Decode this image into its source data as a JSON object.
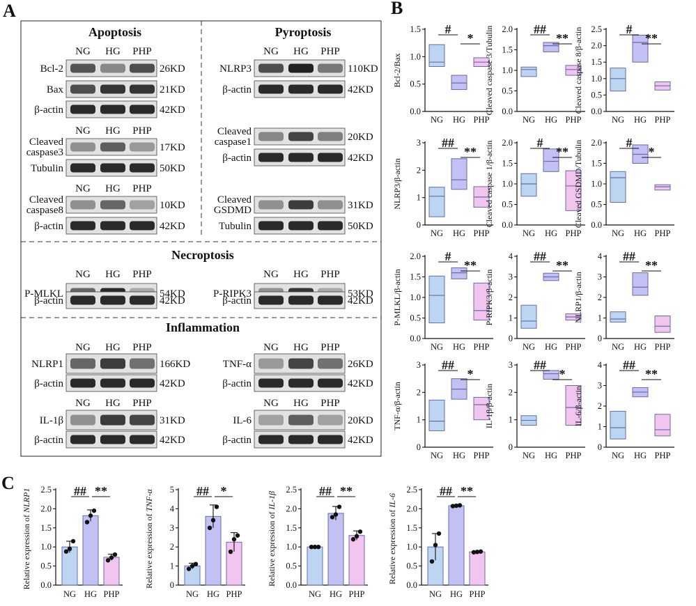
{
  "panels": [
    "A",
    "B",
    "C"
  ],
  "colors": {
    "NG": "#bcd6f2",
    "HG": "#c3c1f4",
    "PHP": "#f2c5ef",
    "edge": "#6a6aa8",
    "axis": "#111111",
    "blot_bg": "#e2e2e2",
    "band": "#1a1a1a"
  },
  "groups": [
    "NG",
    "HG",
    "PHP"
  ],
  "western": {
    "sections": [
      "Apoptosis",
      "Pyroptosis",
      "Necroptosis",
      "Inflammation"
    ],
    "apoptosis": [
      {
        "label": "Bcl-2",
        "kd": "26KD",
        "bands": [
          0.65,
          0.35,
          0.7
        ]
      },
      {
        "label": "Bax",
        "kd": "21KD",
        "bands": [
          0.7,
          0.85,
          0.85
        ]
      },
      {
        "label": "β-actin",
        "kd": "42KD",
        "bands": [
          0.9,
          0.9,
          0.9
        ]
      },
      {
        "label": "Cleaved caspase3",
        "kd": "17KD",
        "bands": [
          0.3,
          0.6,
          0.25
        ]
      },
      {
        "label": "Tubulin",
        "kd": "50KD",
        "bands": [
          0.9,
          0.9,
          0.9
        ]
      },
      {
        "label": "Cleaved caspase8",
        "kd": "10KD",
        "bands": [
          0.3,
          0.55,
          0.2
        ]
      },
      {
        "label": "β-actin",
        "kd": "42KD",
        "bands": [
          0.9,
          0.9,
          0.9
        ]
      }
    ],
    "pyroptosis": [
      {
        "label": "NLRP3",
        "kd": "110KD",
        "bands": [
          0.7,
          0.95,
          0.45
        ]
      },
      {
        "label": "β-actin",
        "kd": "42KD",
        "bands": [
          0.9,
          0.9,
          0.9
        ]
      },
      {
        "label": "Cleaved caspase1",
        "kd": "20KD",
        "bands": [
          0.35,
          0.75,
          0.4
        ]
      },
      {
        "label": "β-actin",
        "kd": "42KD",
        "bands": [
          0.9,
          0.9,
          0.9
        ]
      },
      {
        "label": "Cleaved GSDMD",
        "kd": "31KD",
        "bands": [
          0.3,
          0.8,
          0.3
        ]
      },
      {
        "label": "Tubulin",
        "kd": "50KD",
        "bands": [
          0.9,
          0.9,
          0.9
        ]
      }
    ],
    "necroptosis": [
      {
        "label": "P-MLKL",
        "kd": "54KD",
        "bands": [
          0.55,
          0.9,
          0.15
        ]
      },
      {
        "label": "β-actin",
        "kd": "42KD",
        "bands": [
          0.9,
          0.9,
          0.9
        ]
      },
      {
        "label": "P-RIPK3",
        "kd": "53KD",
        "bands": [
          0.3,
          0.85,
          0.15
        ]
      },
      {
        "label": "β-actin",
        "kd": "42KD",
        "bands": [
          0.9,
          0.9,
          0.9
        ]
      }
    ],
    "inflammation": [
      {
        "label": "NLRP1",
        "kd": "166KD",
        "bands": [
          0.55,
          0.8,
          0.5
        ]
      },
      {
        "label": "β-actin",
        "kd": "42KD",
        "bands": [
          0.9,
          0.9,
          0.9
        ]
      },
      {
        "label": "TNF-α",
        "kd": "26KD",
        "bands": [
          0.25,
          0.75,
          0.5
        ]
      },
      {
        "label": "β-actin",
        "kd": "42KD",
        "bands": [
          0.9,
          0.9,
          0.9
        ]
      },
      {
        "label": "IL-1β",
        "kd": "31KD",
        "bands": [
          0.3,
          0.8,
          0.75
        ]
      },
      {
        "label": "β-actin",
        "kd": "42KD",
        "bands": [
          0.9,
          0.9,
          0.9
        ]
      },
      {
        "label": "IL-6",
        "kd": "20KD",
        "bands": [
          0.2,
          0.6,
          0.2
        ]
      },
      {
        "label": "β-actin",
        "kd": "42KD",
        "bands": [
          0.9,
          0.9,
          0.9
        ]
      }
    ]
  },
  "chart_data": [
    {
      "panel": "B",
      "type": "box",
      "ylabel": "Bcl-2/Bax",
      "categories": [
        "NG",
        "HG",
        "PHP"
      ],
      "ylim": [
        0,
        1.5
      ],
      "ticks": [
        "0.0",
        "0.5",
        "1.0",
        "1.5"
      ],
      "boxes": [
        [
          0.82,
          0.9,
          1.22
        ],
        [
          0.4,
          0.52,
          0.66
        ],
        [
          0.82,
          0.9,
          0.98
        ]
      ],
      "sig": [
        {
          "from": 0,
          "to": 1,
          "mark": "#"
        },
        {
          "from": 1,
          "to": 2,
          "mark": "*"
        }
      ]
    },
    {
      "panel": "B",
      "type": "box",
      "ylabel": "Cleaved caspase 3/Tubulin",
      "categories": [
        "NG",
        "HG",
        "PHP"
      ],
      "ylim": [
        0,
        2.0
      ],
      "ticks": [
        "0.0",
        "0.5",
        "1.0",
        "1.5",
        "2.0"
      ],
      "boxes": [
        [
          0.85,
          1.02,
          1.08
        ],
        [
          1.45,
          1.6,
          1.68
        ],
        [
          0.88,
          1.02,
          1.12
        ]
      ],
      "sig": [
        {
          "from": 0,
          "to": 1,
          "mark": "##"
        },
        {
          "from": 1,
          "to": 2,
          "mark": "**"
        }
      ]
    },
    {
      "panel": "B",
      "type": "box",
      "ylabel": "Cleaved caspase 8/β-actin",
      "categories": [
        "NG",
        "HG",
        "PHP"
      ],
      "ylim": [
        0,
        2.5
      ],
      "ticks": [
        "0.0",
        "0.5",
        "1.0",
        "1.5",
        "2.0",
        "2.5"
      ],
      "boxes": [
        [
          0.62,
          1.0,
          1.32
        ],
        [
          1.5,
          2.1,
          2.32
        ],
        [
          0.65,
          0.78,
          0.9
        ]
      ],
      "sig": [
        {
          "from": 0,
          "to": 1,
          "mark": "#"
        },
        {
          "from": 1,
          "to": 2,
          "mark": "**"
        }
      ]
    },
    {
      "panel": "B",
      "type": "box",
      "ylabel": "NLRP3/β-actin",
      "categories": [
        "NG",
        "HG",
        "PHP"
      ],
      "ylim": [
        0,
        3
      ],
      "ticks": [
        "0",
        "1",
        "2",
        "3"
      ],
      "boxes": [
        [
          0.3,
          1.05,
          1.38
        ],
        [
          1.3,
          1.65,
          2.42
        ],
        [
          0.65,
          1.02,
          1.4
        ]
      ],
      "sig": [
        {
          "from": 0,
          "to": 1,
          "mark": "##"
        },
        {
          "from": 1,
          "to": 2,
          "mark": "**"
        }
      ]
    },
    {
      "panel": "B",
      "type": "box",
      "ylabel": "Cleaved caspase 1/β-actin",
      "categories": [
        "NG",
        "HG",
        "PHP"
      ],
      "ylim": [
        0,
        2.0
      ],
      "ticks": [
        "0.0",
        "0.5",
        "1.0",
        "1.5",
        "2.0"
      ],
      "boxes": [
        [
          0.7,
          1.0,
          1.25
        ],
        [
          1.3,
          1.55,
          1.85
        ],
        [
          0.35,
          0.95,
          1.32
        ]
      ],
      "sig": [
        {
          "from": 0,
          "to": 1,
          "mark": "#"
        },
        {
          "from": 1,
          "to": 2,
          "mark": "**"
        }
      ]
    },
    {
      "panel": "B",
      "type": "box",
      "ylabel": "Cleaved GSDMD/Tubulin",
      "categories": [
        "NG",
        "HG",
        "PHP"
      ],
      "ylim": [
        0,
        2.0
      ],
      "ticks": [
        "0.0",
        "0.5",
        "1.0",
        "1.5",
        "2.0"
      ],
      "boxes": [
        [
          0.55,
          1.15,
          1.3
        ],
        [
          1.5,
          1.72,
          1.95
        ],
        [
          0.85,
          0.93,
          0.98
        ]
      ],
      "sig": [
        {
          "from": 0,
          "to": 1,
          "mark": "#"
        },
        {
          "from": 1,
          "to": 2,
          "mark": "*"
        }
      ]
    },
    {
      "panel": "B",
      "type": "box",
      "ylabel": "P-MLKL/β-actin",
      "categories": [
        "NG",
        "HG",
        "PHP"
      ],
      "ylim": [
        0,
        2.0
      ],
      "ticks": [
        "0.0",
        "0.5",
        "1.0",
        "1.5",
        "2.0"
      ],
      "boxes": [
        [
          0.38,
          1.05,
          1.52
        ],
        [
          1.45,
          1.6,
          1.72
        ],
        [
          0.45,
          0.68,
          1.35
        ]
      ],
      "sig": [
        {
          "from": 0,
          "to": 1,
          "mark": "#"
        },
        {
          "from": 1,
          "to": 2,
          "mark": "**"
        }
      ]
    },
    {
      "panel": "B",
      "type": "box",
      "ylabel": "P-RIPK3/β-actin",
      "categories": [
        "NG",
        "HG",
        "PHP"
      ],
      "ylim": [
        0,
        4
      ],
      "ticks": [
        "0",
        "1",
        "2",
        "3",
        "4"
      ],
      "boxes": [
        [
          0.5,
          0.85,
          1.62
        ],
        [
          2.82,
          3.0,
          3.18
        ],
        [
          0.9,
          1.05,
          1.2
        ]
      ],
      "sig": [
        {
          "from": 0,
          "to": 1,
          "mark": "##"
        },
        {
          "from": 1,
          "to": 2,
          "mark": "**"
        }
      ]
    },
    {
      "panel": "B",
      "type": "box",
      "ylabel": "NLRP1/β-actin",
      "categories": [
        "NG",
        "HG",
        "PHP"
      ],
      "ylim": [
        0,
        4
      ],
      "ticks": [
        "0",
        "1",
        "2",
        "3",
        "4"
      ],
      "boxes": [
        [
          0.8,
          0.95,
          1.3
        ],
        [
          2.1,
          2.5,
          3.2
        ],
        [
          0.3,
          0.6,
          1.1
        ]
      ],
      "sig": [
        {
          "from": 0,
          "to": 1,
          "mark": "##"
        },
        {
          "from": 1,
          "to": 2,
          "mark": "**"
        }
      ]
    },
    {
      "panel": "B",
      "type": "box",
      "ylabel": "TNF-α/β-actin",
      "categories": [
        "NG",
        "HG",
        "PHP"
      ],
      "ylim": [
        0,
        3
      ],
      "ticks": [
        "0",
        "1",
        "2",
        "3"
      ],
      "boxes": [
        [
          0.6,
          0.95,
          1.72
        ],
        [
          1.75,
          2.12,
          2.5
        ],
        [
          1.0,
          1.55,
          1.82
        ]
      ],
      "sig": [
        {
          "from": 0,
          "to": 1,
          "mark": "##"
        },
        {
          "from": 1,
          "to": 2,
          "mark": "*"
        }
      ]
    },
    {
      "panel": "B",
      "type": "box",
      "ylabel": "IL-1β/β-actin",
      "categories": [
        "NG",
        "HG",
        "PHP"
      ],
      "ylim": [
        0,
        3
      ],
      "ticks": [
        "0",
        "1",
        "2",
        "3"
      ],
      "boxes": [
        [
          0.8,
          0.98,
          1.15
        ],
        [
          2.48,
          2.68,
          2.8
        ],
        [
          0.8,
          1.45,
          2.25
        ]
      ],
      "sig": [
        {
          "from": 0,
          "to": 1,
          "mark": "##"
        },
        {
          "from": 1,
          "to": 2,
          "mark": "*"
        }
      ]
    },
    {
      "panel": "B",
      "type": "box",
      "ylabel": "IL-6/β-actin",
      "categories": [
        "NG",
        "HG",
        "PHP"
      ],
      "ylim": [
        0,
        4
      ],
      "ticks": [
        "0",
        "1",
        "2",
        "3",
        "4"
      ],
      "boxes": [
        [
          0.4,
          0.95,
          1.75
        ],
        [
          2.45,
          2.68,
          2.9
        ],
        [
          0.55,
          0.85,
          1.6
        ]
      ],
      "sig": [
        {
          "from": 0,
          "to": 1,
          "mark": "##"
        },
        {
          "from": 1,
          "to": 2,
          "mark": "**"
        }
      ]
    },
    {
      "panel": "C",
      "type": "bar",
      "ylabel_pre": "Relative expression of ",
      "ylabel_gene": "NLRP1",
      "categories": [
        "NG",
        "HG",
        "PHP"
      ],
      "ylim": [
        0,
        2.5
      ],
      "ticks": [
        "0.0",
        "0.5",
        "1.0",
        "1.5",
        "2.0",
        "2.5"
      ],
      "values": [
        1.0,
        1.82,
        0.73
      ],
      "errors": [
        0.15,
        0.15,
        0.08
      ],
      "points": [
        [
          0.88,
          0.95,
          1.15
        ],
        [
          1.65,
          1.82,
          1.95
        ],
        [
          0.65,
          0.72,
          0.8
        ]
      ],
      "sig": [
        {
          "from": 0,
          "to": 1,
          "mark": "##"
        },
        {
          "from": 1,
          "to": 2,
          "mark": "**"
        }
      ]
    },
    {
      "panel": "C",
      "type": "bar",
      "ylabel_pre": "Relative expression of ",
      "ylabel_gene": "TNF-α",
      "categories": [
        "NG",
        "HG",
        "PHP"
      ],
      "ylim": [
        0,
        5
      ],
      "ticks": [
        "0",
        "1",
        "2",
        "3",
        "4",
        "5"
      ],
      "values": [
        1.0,
        3.6,
        2.25
      ],
      "errors": [
        0.15,
        0.6,
        0.5
      ],
      "points": [
        [
          0.85,
          1.0,
          1.1
        ],
        [
          3.0,
          3.4,
          4.1
        ],
        [
          1.75,
          2.4,
          2.6
        ]
      ],
      "sig": [
        {
          "from": 0,
          "to": 1,
          "mark": "##"
        },
        {
          "from": 1,
          "to": 2,
          "mark": "*"
        }
      ]
    },
    {
      "panel": "C",
      "type": "bar",
      "ylabel_pre": "Relative expression of ",
      "ylabel_gene": "IL-1β",
      "categories": [
        "NG",
        "HG",
        "PHP"
      ],
      "ylim": [
        0,
        2.5
      ],
      "ticks": [
        "0.0",
        "0.5",
        "1.0",
        "1.5",
        "2.0",
        "2.5"
      ],
      "values": [
        1.0,
        1.88,
        1.3
      ],
      "errors": [
        0.0,
        0.18,
        0.12
      ],
      "points": [
        [
          1.0,
          1.0,
          1.0
        ],
        [
          1.78,
          1.85,
          2.05
        ],
        [
          1.2,
          1.28,
          1.4
        ]
      ],
      "sig": [
        {
          "from": 0,
          "to": 1,
          "mark": "##"
        },
        {
          "from": 1,
          "to": 2,
          "mark": "**"
        }
      ]
    },
    {
      "panel": "C",
      "type": "bar",
      "ylabel_pre": "Relative expression of ",
      "ylabel_gene": "IL-6",
      "categories": [
        "NG",
        "HG",
        "PHP"
      ],
      "ylim": [
        0,
        2.5
      ],
      "ticks": [
        "0.0",
        "0.5",
        "1.0",
        "1.5",
        "2.0",
        "2.5"
      ],
      "values": [
        1.0,
        2.08,
        0.87
      ],
      "errors": [
        0.35,
        0.02,
        0.01
      ],
      "points": [
        [
          0.62,
          1.05,
          1.35
        ],
        [
          2.07,
          2.08,
          2.09
        ],
        [
          0.86,
          0.87,
          0.88
        ]
      ],
      "sig": [
        {
          "from": 0,
          "to": 1,
          "mark": "##"
        },
        {
          "from": 1,
          "to": 2,
          "mark": "**"
        }
      ]
    }
  ]
}
